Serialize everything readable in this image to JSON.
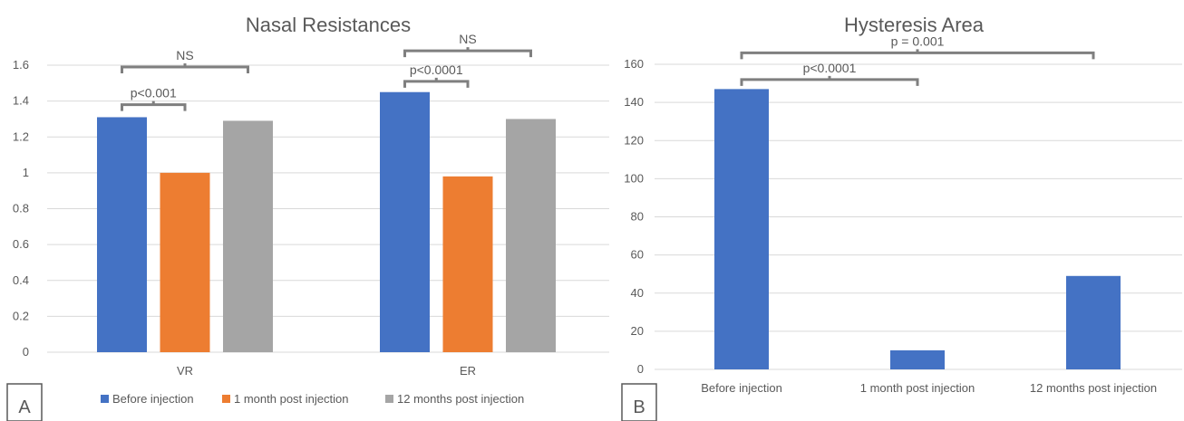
{
  "chart_data": [
    {
      "type": "bar",
      "title": "Nasal Resistances",
      "panel_label": "A",
      "categories": [
        "VR",
        "ER"
      ],
      "ylim": [
        0,
        1.6
      ],
      "yticks": [
        "0",
        "0.2",
        "0.4",
        "0.6",
        "0.8",
        "1",
        "1.2",
        "1.4",
        "1.6"
      ],
      "grid": true,
      "legend_position": "bottom",
      "series": [
        {
          "name": "Before injection",
          "color": "#4472C4",
          "values": [
            1.31,
            1.45
          ]
        },
        {
          "name": "1 month post injection",
          "color": "#ED7D31",
          "values": [
            1.0,
            0.98
          ]
        },
        {
          "name": "12 months post injection",
          "color": "#A5A5A5",
          "values": [
            1.29,
            1.3
          ]
        }
      ],
      "annotations": [
        {
          "text": "p<0.001",
          "category": 0,
          "from_series": 0,
          "to_series": 1,
          "y": 1.38
        },
        {
          "text": "NS",
          "category": 0,
          "from_series": 0,
          "to_series": 2,
          "y": 1.59
        },
        {
          "text": "p<0.0001",
          "category": 1,
          "from_series": 0,
          "to_series": 1,
          "y": 1.51
        },
        {
          "text": "NS",
          "category": 1,
          "from_series": 0,
          "to_series": 2,
          "y": 1.68
        }
      ]
    },
    {
      "type": "bar",
      "title": "Hysteresis Area",
      "panel_label": "B",
      "categories": [
        "Before injection",
        "1 month post injection",
        "12 months post injection"
      ],
      "ylim": [
        0,
        160
      ],
      "yticks": [
        "0",
        "20",
        "40",
        "60",
        "80",
        "100",
        "120",
        "140",
        "160"
      ],
      "grid": true,
      "series": [
        {
          "name": "",
          "color": "#4472C4",
          "values": [
            147,
            10,
            49
          ]
        }
      ],
      "annotations": [
        {
          "text": "p<0.0001",
          "from_category": 0,
          "to_category": 1,
          "y": 152
        },
        {
          "text": "p = 0.001",
          "from_category": 0,
          "to_category": 2,
          "y": 166
        }
      ]
    }
  ]
}
